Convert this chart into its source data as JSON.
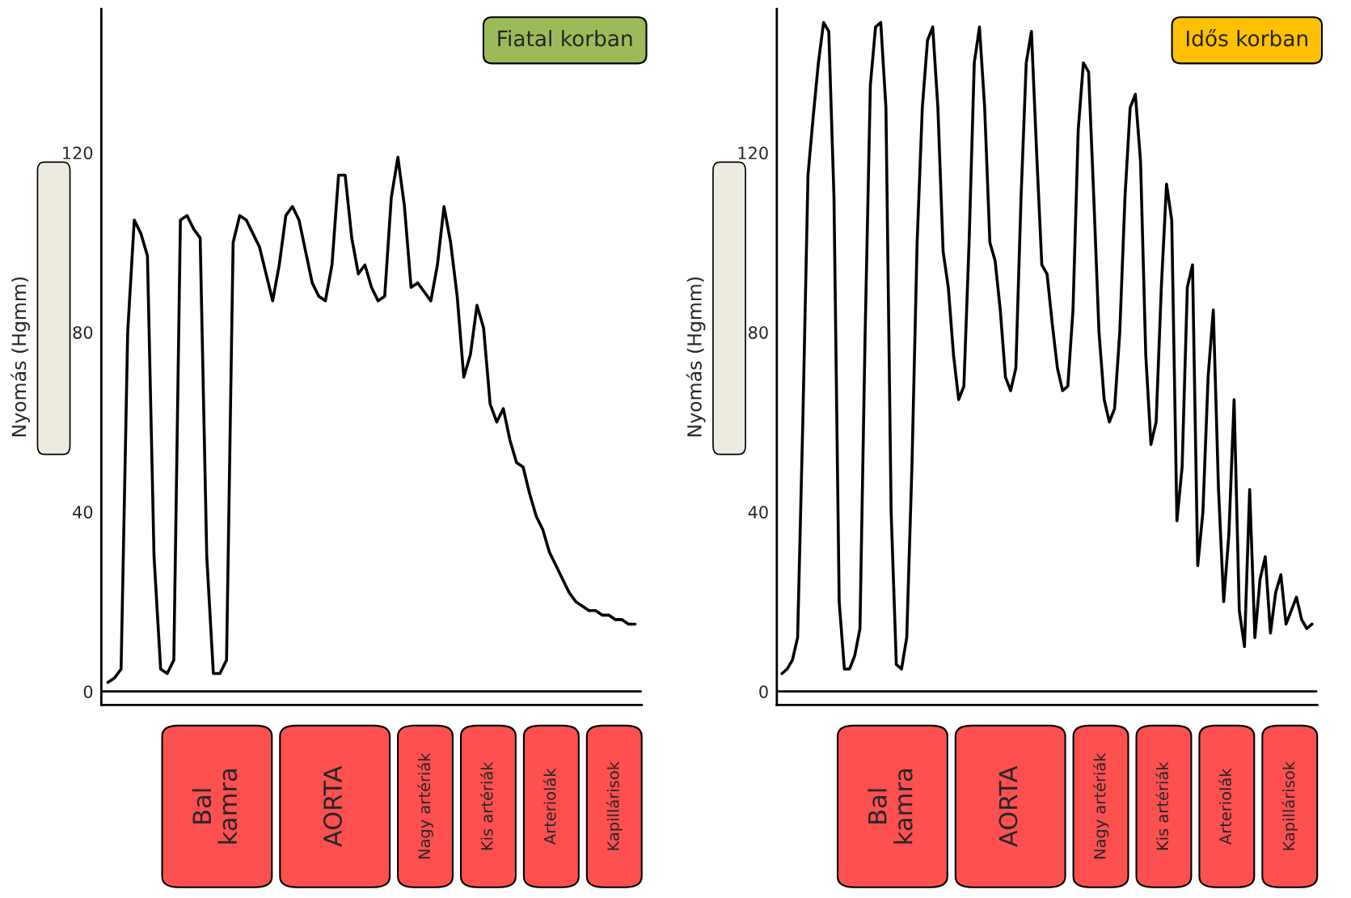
{
  "chart_data": [
    {
      "type": "line",
      "title": "Fiatal korban",
      "ylabel": "Nyomás (Hgmm)",
      "categories": [
        null,
        null,
        null,
        null,
        null,
        null,
        null,
        null,
        null,
        null,
        null,
        null,
        null,
        null,
        null,
        null,
        null,
        null,
        null,
        null,
        null,
        null,
        null,
        null,
        null,
        null,
        null,
        null,
        null,
        null,
        null,
        null,
        null,
        null,
        null,
        null,
        null,
        null,
        null,
        null,
        null,
        null,
        null,
        null,
        null,
        null,
        null,
        null,
        null,
        null,
        null,
        null,
        null,
        null,
        null,
        null,
        null,
        null,
        null,
        null,
        null,
        null,
        null,
        null,
        null,
        null,
        null,
        null,
        null,
        null,
        null,
        null,
        null,
        null,
        null,
        null,
        null,
        null,
        null,
        null,
        null
      ],
      "series": [
        {
          "color": "#000000",
          "values": [
            2,
            3,
            5,
            80,
            105,
            102,
            97,
            30,
            5,
            4,
            7,
            105,
            106,
            103,
            101,
            30,
            4,
            4,
            7,
            100,
            106,
            105,
            102,
            99,
            93,
            87,
            95,
            106,
            108,
            105,
            98,
            91,
            88,
            87,
            95,
            115,
            115,
            101,
            93,
            95,
            90,
            87,
            88,
            110,
            119,
            108,
            90,
            91,
            89,
            87,
            95,
            108,
            100,
            88,
            70,
            75,
            86,
            81,
            64,
            60,
            63,
            56,
            51,
            50,
            44,
            39,
            36,
            31,
            28,
            25,
            22,
            20,
            19,
            18,
            18,
            17,
            17,
            16,
            16,
            15,
            15
          ]
        }
      ],
      "ylim": [
        -3,
        152
      ],
      "yticks": [
        0,
        40,
        80,
        120
      ],
      "tick_labels": "y",
      "ref_lines": [
        {
          "axis": "y",
          "value": 0
        }
      ],
      "annotations": [
        "Bal\nkamra",
        "AORTA",
        "Nagy artériák",
        "Kis artériák",
        "Arteriolák",
        "Kapillárisok"
      ]
    },
    {
      "type": "line",
      "title": "Idős korban",
      "ylabel": "Nyomás (Hgmm)",
      "categories": [
        null,
        null,
        null,
        null,
        null,
        null,
        null,
        null,
        null,
        null,
        null,
        null,
        null,
        null,
        null,
        null,
        null,
        null,
        null,
        null,
        null,
        null,
        null,
        null,
        null,
        null,
        null,
        null,
        null,
        null,
        null,
        null,
        null,
        null,
        null,
        null,
        null,
        null,
        null,
        null,
        null,
        null,
        null,
        null,
        null,
        null,
        null,
        null,
        null,
        null,
        null,
        null,
        null,
        null,
        null,
        null,
        null,
        null,
        null,
        null,
        null,
        null,
        null,
        null,
        null,
        null,
        null,
        null,
        null,
        null,
        null,
        null,
        null,
        null,
        null,
        null,
        null,
        null,
        null,
        null,
        null,
        null,
        null,
        null,
        null,
        null,
        null,
        null,
        null,
        null,
        null,
        null,
        null,
        null,
        null,
        null,
        null,
        null,
        null,
        null,
        null,
        null,
        null
      ],
      "series": [
        {
          "color": "#000000",
          "values": [
            4,
            5,
            7,
            12,
            60,
            115,
            128,
            140,
            149,
            147,
            110,
            20,
            5,
            5,
            8,
            14,
            80,
            135,
            148,
            149,
            130,
            40,
            6,
            5,
            12,
            50,
            100,
            130,
            145,
            148,
            130,
            98,
            90,
            75,
            65,
            68,
            100,
            140,
            148,
            130,
            100,
            96,
            85,
            70,
            67,
            72,
            110,
            140,
            147,
            120,
            95,
            93,
            82,
            72,
            67,
            68,
            85,
            125,
            140,
            138,
            110,
            80,
            65,
            60,
            63,
            80,
            110,
            130,
            133,
            118,
            75,
            55,
            60,
            90,
            113,
            105,
            38,
            50,
            90,
            95,
            28,
            40,
            70,
            85,
            45,
            20,
            35,
            65,
            18,
            10,
            45,
            12,
            25,
            30,
            13,
            22,
            26,
            15,
            18,
            21,
            16,
            14,
            15
          ]
        }
      ],
      "ylim": [
        -3,
        152
      ],
      "yticks": [
        0,
        40,
        80,
        120
      ],
      "tick_labels": "y",
      "ref_lines": [
        {
          "axis": "y",
          "value": 0
        }
      ],
      "annotations": [
        "Bal\nkamra",
        "AORTA",
        "Nagy artériák",
        "Kis artériák",
        "Arteriolák",
        "Kapillárisok"
      ]
    }
  ]
}
